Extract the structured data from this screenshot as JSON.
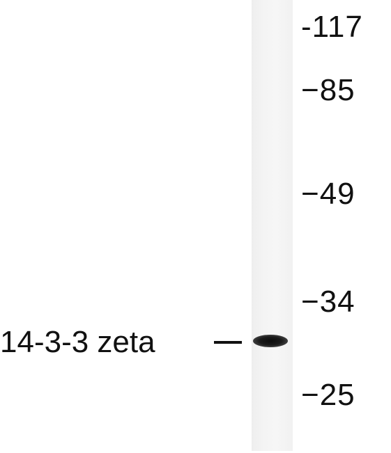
{
  "markers": [
    {
      "label": "-117"
    },
    {
      "label": "−85"
    },
    {
      "label": "−49"
    },
    {
      "label": "−34"
    },
    {
      "label": "−25"
    }
  ],
  "protein_label": "14-3-3 zeta",
  "colors": {
    "band": "#111111",
    "lane": "#f3f3f3",
    "text": "#111111",
    "background": "#ffffff"
  }
}
